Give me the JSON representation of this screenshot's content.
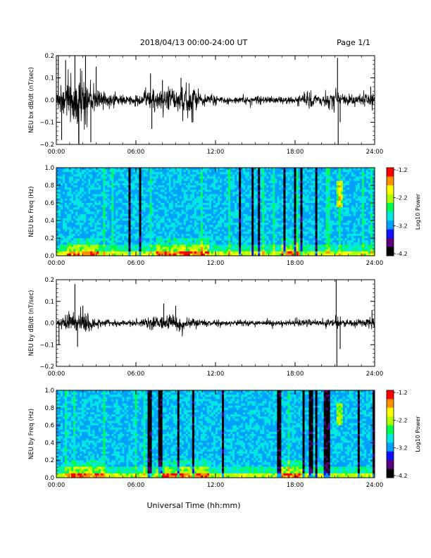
{
  "header": {
    "title": "2018/04/13  00:00-24:00 UT",
    "page": "Page 1/1"
  },
  "x_axis": {
    "label": "Universal Time (hh:mm)",
    "ticks": [
      "00:00",
      "06:00",
      "12:00",
      "18:00",
      "24:00"
    ],
    "range_hours": [
      0,
      24
    ]
  },
  "colormap": [
    "#000000",
    "#5a007f",
    "#1010ff",
    "#00a0ff",
    "#00e8e0",
    "#00ff50",
    "#b0ff00",
    "#ffff00",
    "#ff9000",
    "#ff0000"
  ],
  "chart_data": [
    {
      "type": "line",
      "ylabel": "NEU bx dB/dt (nT/sec)",
      "ylim": [
        -0.2,
        0.2
      ],
      "yticks": [
        "0.2",
        "0.1",
        "0.0",
        "−0.1",
        "−0.2"
      ],
      "x_hours": [
        0,
        0.5,
        1,
        1.5,
        2,
        2.5,
        3,
        3.5,
        4,
        4.5,
        5,
        5.5,
        6,
        6.5,
        7,
        7.5,
        8,
        8.5,
        9,
        9.5,
        10,
        10.5,
        11,
        11.5,
        12,
        12.5,
        13,
        13.5,
        14,
        14.5,
        15,
        15.5,
        16,
        16.5,
        17,
        17.5,
        18,
        18.5,
        19,
        19.5,
        20,
        20.5,
        21,
        21.5,
        22,
        22.5,
        23,
        23.5,
        24
      ],
      "envelope": [
        0.06,
        0.08,
        0.1,
        0.14,
        0.15,
        0.08,
        0.06,
        0.05,
        0.04,
        0.04,
        0.03,
        0.02,
        0.03,
        0.04,
        0.06,
        0.07,
        0.06,
        0.06,
        0.06,
        0.07,
        0.07,
        0.06,
        0.04,
        0.03,
        0.03,
        0.02,
        0.02,
        0.02,
        0.02,
        0.02,
        0.02,
        0.02,
        0.02,
        0.02,
        0.02,
        0.02,
        0.025,
        0.03,
        0.04,
        0.03,
        0.03,
        0.04,
        0.05,
        0.04,
        0.03,
        0.03,
        0.03,
        0.04,
        0.04
      ],
      "spikes": [
        {
          "x": 0.15,
          "y": 0.22
        },
        {
          "x": 0.4,
          "y": -0.18
        },
        {
          "x": 0.7,
          "y": 0.18
        },
        {
          "x": 1.4,
          "y": 0.25
        },
        {
          "x": 1.7,
          "y": -0.22
        },
        {
          "x": 2.2,
          "y": 0.22
        },
        {
          "x": 2.6,
          "y": -0.19
        },
        {
          "x": 3.0,
          "y": 0.15
        },
        {
          "x": 7.1,
          "y": 0.12
        },
        {
          "x": 7.2,
          "y": -0.13
        },
        {
          "x": 8.0,
          "y": 0.09
        },
        {
          "x": 9.4,
          "y": 0.1
        },
        {
          "x": 10.3,
          "y": -0.1
        },
        {
          "x": 21.2,
          "y": 0.19
        },
        {
          "x": 21.25,
          "y": -0.22
        },
        {
          "x": 21.4,
          "y": -0.1
        },
        {
          "x": 23.7,
          "y": 0.06
        }
      ]
    },
    {
      "type": "heatmap",
      "ylabel": "NEU bx Freq (Hz)",
      "ylim": [
        0,
        1.0
      ],
      "yticks": [
        "1.0",
        "0.8",
        "0.6",
        "0.4",
        "0.2",
        "0.0"
      ],
      "colorbar": {
        "label": "Log10 Power",
        "range": [
          -4.2,
          -1.2
        ],
        "ticks": [
          "-1.2",
          "-2.2",
          "-3.2",
          "-4.2"
        ]
      },
      "low_freq_activity_hours": [
        [
          0.8,
          3.2
        ],
        [
          7.5,
          11.5
        ],
        [
          17.0,
          18.5
        ]
      ],
      "bright_feature": {
        "x_hours": 21.3,
        "freq_range": [
          0.55,
          0.85
        ]
      }
    },
    {
      "type": "line",
      "ylabel": "NEU by dB/dt (nT/sec)",
      "ylim": [
        -0.2,
        0.2
      ],
      "yticks": [
        "0.2",
        "0.1",
        "0.0",
        "−0.1",
        "−0.2"
      ],
      "x_hours": [
        0,
        0.5,
        1,
        1.5,
        2,
        2.5,
        3,
        3.5,
        4,
        4.5,
        5,
        5.5,
        6,
        6.5,
        7,
        7.5,
        8,
        8.5,
        9,
        9.5,
        10,
        10.5,
        11,
        11.5,
        12,
        12.5,
        13,
        13.5,
        14,
        14.5,
        15,
        15.5,
        16,
        16.5,
        17,
        17.5,
        18,
        18.5,
        19,
        19.5,
        20,
        20.5,
        21,
        21.5,
        22,
        22.5,
        23,
        23.5,
        24
      ],
      "envelope": [
        0.02,
        0.04,
        0.05,
        0.06,
        0.06,
        0.04,
        0.03,
        0.02,
        0.02,
        0.02,
        0.015,
        0.015,
        0.02,
        0.02,
        0.03,
        0.04,
        0.04,
        0.05,
        0.04,
        0.035,
        0.03,
        0.025,
        0.02,
        0.015,
        0.015,
        0.015,
        0.015,
        0.015,
        0.015,
        0.015,
        0.015,
        0.015,
        0.015,
        0.015,
        0.015,
        0.015,
        0.015,
        0.02,
        0.02,
        0.02,
        0.02,
        0.02,
        0.03,
        0.025,
        0.02,
        0.02,
        0.02,
        0.025,
        0.025
      ],
      "spikes": [
        {
          "x": 0.2,
          "y": -0.1
        },
        {
          "x": 1.4,
          "y": 0.18
        },
        {
          "x": 1.6,
          "y": -0.11
        },
        {
          "x": 2.0,
          "y": 0.08
        },
        {
          "x": 8.1,
          "y": 0.09
        },
        {
          "x": 9.0,
          "y": 0.08
        },
        {
          "x": 21.1,
          "y": 0.2
        },
        {
          "x": 21.15,
          "y": -0.2
        },
        {
          "x": 21.4,
          "y": -0.12
        },
        {
          "x": 23.8,
          "y": 0.06
        }
      ]
    },
    {
      "type": "heatmap",
      "ylabel": "NEU by Freq (Hz)",
      "ylim": [
        0,
        1.0
      ],
      "yticks": [
        "1.0",
        "0.8",
        "0.6",
        "0.4",
        "0.2",
        "0.0"
      ],
      "colorbar": {
        "label": "Log10 Power",
        "range": [
          -4.2,
          -1.2
        ],
        "ticks": [
          "-1.2",
          "-2.2",
          "-3.2",
          "-4.2"
        ]
      },
      "low_freq_activity_hours": [
        [
          0.8,
          3.5
        ],
        [
          7.5,
          11.5
        ],
        [
          17.0,
          18.5
        ]
      ],
      "bright_feature": {
        "x_hours": 21.3,
        "freq_range": [
          0.6,
          0.85
        ]
      }
    }
  ]
}
